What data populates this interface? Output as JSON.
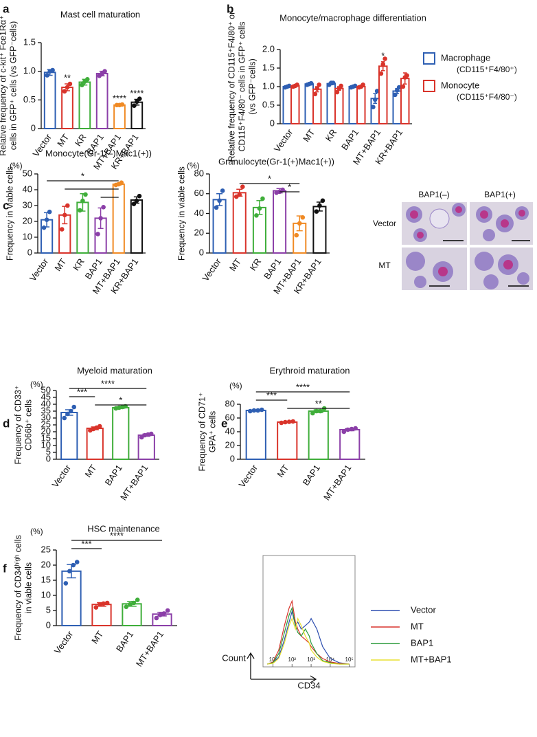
{
  "chart_data": [
    {
      "type": "bar",
      "panel": "a",
      "title": "Mast cell maturation",
      "ylabel": [
        "Relative frequency of c-kit⁺ Fce1Rα⁺",
        "cells in GFP⁺ cells  (vs GFP⁻cells)"
      ],
      "categories": [
        "Vector",
        "MT",
        "KR",
        "BAP1",
        "MT+BAP1",
        "KR+BAP1"
      ],
      "colors": [
        "#2e5fb3",
        "#d9342b",
        "#3fae3a",
        "#8b3fa8",
        "#f08a24",
        "#111111"
      ],
      "values": [
        0.98,
        0.72,
        0.81,
        0.96,
        0.41,
        0.46
      ],
      "errors": [
        0.05,
        0.06,
        0.05,
        0.04,
        0.01,
        0.05
      ],
      "points": [
        [
          0.93,
          1.0,
          1.02
        ],
        [
          0.65,
          0.72,
          0.78
        ],
        [
          0.76,
          0.82,
          0.86
        ],
        [
          0.92,
          0.96,
          1.0
        ],
        [
          0.41,
          0.41,
          0.42
        ],
        [
          0.4,
          0.47,
          0.52
        ]
      ],
      "stars": [
        null,
        "**",
        null,
        null,
        "****",
        "****"
      ],
      "ylim": [
        0,
        1.5
      ],
      "yticks": [
        0,
        0.5,
        {
          "value": 1,
          "label": "1.0"
        },
        1.5
      ]
    },
    {
      "type": "grouped-bar",
      "panel": "b",
      "title": "Monocyte/macrophage differentiation",
      "ylabel": [
        "Relative frequency of CD115⁺F4/80⁺ or",
        "CD115⁺F4/80⁻ cells in GFP⁺ cells",
        "(vs GFP⁻cells)"
      ],
      "categories": [
        "Vector",
        "MT",
        "KR",
        "BAP1",
        "MT+BAP1",
        "KR+BAP1"
      ],
      "series": [
        {
          "name": "Macrophage",
          "sublabel": "(CD115⁺F4/80⁺)",
          "color": "#2e5fb3",
          "values": [
            1.0,
            1.07,
            1.08,
            1.0,
            0.68,
            0.88
          ],
          "errors": [
            0.02,
            0.02,
            0.03,
            0.02,
            0.13,
            0.07
          ],
          "points": [
            [
              0.98,
              1.0,
              1.02
            ],
            [
              1.05,
              1.07,
              1.09
            ],
            [
              1.05,
              1.1,
              1.1
            ],
            [
              0.98,
              1.0,
              1.02
            ],
            [
              0.45,
              0.65,
              0.88
            ],
            [
              0.78,
              0.9,
              0.98
            ]
          ],
          "stars": [
            null,
            null,
            null,
            null,
            null,
            null
          ]
        },
        {
          "name": "Monocyte",
          "sublabel": "(CD115⁺F4/80⁻)",
          "color": "#d9342b",
          "values": [
            1.02,
            0.93,
            0.95,
            1.0,
            1.55,
            1.22
          ],
          "errors": [
            0.03,
            0.07,
            0.05,
            0.03,
            0.12,
            0.15
          ],
          "points": [
            [
              1.0,
              1.02,
              1.05
            ],
            [
              0.8,
              0.95,
              1.05
            ],
            [
              0.85,
              0.95,
              1.02
            ],
            [
              0.98,
              1.0,
              1.05
            ],
            [
              1.35,
              1.6,
              1.75
            ],
            [
              1.0,
              1.25,
              1.3
            ]
          ],
          "stars": [
            null,
            null,
            null,
            null,
            "*",
            null
          ]
        }
      ],
      "ylim": [
        0,
        2
      ],
      "yticks": [
        0,
        0.5,
        {
          "value": 1,
          "label": "1.0"
        },
        1.5,
        {
          "value": 2,
          "label": "2.0"
        }
      ]
    },
    {
      "type": "bar",
      "panel": "c",
      "title": "Monocyte(Gr-1(–)Mac1(+))",
      "unit": "(%)",
      "ylabel": [
        "Frequency in viable cells"
      ],
      "categories": [
        "Vector",
        "MT",
        "KR",
        "BAP1",
        "MT+BAP1",
        "KR+BAP1"
      ],
      "colors": [
        "#2e5fb3",
        "#d9342b",
        "#3fae3a",
        "#8b3fa8",
        "#f08a24",
        "#111111"
      ],
      "values": [
        21,
        24,
        32,
        22,
        43.5,
        33.5
      ],
      "errors": [
        4.5,
        5.5,
        5.5,
        6.5,
        0.6,
        2
      ],
      "points": [
        [
          16,
          21,
          26
        ],
        [
          15,
          24,
          30
        ],
        [
          27,
          33,
          37
        ],
        [
          12,
          22,
          29
        ],
        [
          43,
          43.5,
          44.5
        ],
        [
          31,
          33,
          36
        ]
      ],
      "brackets": [
        {
          "between": [
            "Vector",
            "MT+BAP1"
          ],
          "label": "*"
        },
        {
          "between": [
            "MT",
            "MT+BAP1"
          ]
        },
        {
          "between": [
            "BAP1",
            "MT+BAP1"
          ]
        }
      ],
      "ylim": [
        0,
        50
      ],
      "yticks": [
        0,
        10,
        20,
        30,
        40,
        50
      ]
    },
    {
      "type": "bar",
      "title": "Granulocyte(Gr-1(+)Mac1(+))",
      "unit": "(%)",
      "ylabel": [
        "Frequency in viable cells"
      ],
      "categories": [
        "Vector",
        "MT",
        "KR",
        "BAP1",
        "MT+BAP1",
        "KR+BAP1"
      ],
      "colors": [
        "#2e5fb3",
        "#d9342b",
        "#3fae3a",
        "#8b3fa8",
        "#f08a24",
        "#111111"
      ],
      "values": [
        54,
        61,
        46,
        63,
        30,
        47
      ],
      "errors": [
        6,
        3.5,
        7,
        2.2,
        7.5,
        4.5
      ],
      "points": [
        [
          46,
          53,
          63
        ],
        [
          57,
          59,
          67
        ],
        [
          38,
          45,
          55
        ],
        [
          61,
          62,
          64
        ],
        [
          18,
          30,
          36
        ],
        [
          42,
          48,
          53
        ]
      ],
      "brackets": [
        {
          "between": [
            "MT",
            "MT+BAP1"
          ],
          "label": "*"
        },
        {
          "between": [
            "BAP1",
            "MT+BAP1"
          ],
          "label": "*"
        }
      ],
      "ylim": [
        0,
        80
      ],
      "yticks": [
        0,
        20,
        40,
        60,
        80
      ]
    },
    {
      "type": "bar",
      "panel": "d",
      "title": "Myeloid maturation",
      "unit": "(%)",
      "ylabel": [
        "Frequency of CD33⁺",
        "CD66b⁺ cells"
      ],
      "categories": [
        "Vector",
        "MT",
        "BAP1",
        "MT+BAP1"
      ],
      "colors": [
        "#2e5fb3",
        "#d9342b",
        "#3fae3a",
        "#8b3fa8"
      ],
      "values": [
        34,
        22.5,
        37.5,
        17.5
      ],
      "errors": [
        2,
        1,
        0.5,
        0.8
      ],
      "points": [
        [
          30,
          33,
          35,
          38
        ],
        [
          21,
          22,
          23,
          24
        ],
        [
          37,
          37.5,
          38,
          38.5
        ],
        [
          16,
          17.5,
          18,
          18.5
        ]
      ],
      "brackets": [
        {
          "between": [
            "Vector",
            "MT+BAP1"
          ],
          "label": "****"
        },
        {
          "between": [
            "Vector",
            "MT"
          ],
          "label": "***"
        },
        {
          "between": [
            "MT",
            "MT+BAP1"
          ],
          "label": "*"
        }
      ],
      "ylim": [
        0,
        50
      ],
      "yticks": [
        0,
        5,
        10,
        15,
        20,
        25,
        30,
        35,
        40,
        45,
        50
      ]
    },
    {
      "type": "bar",
      "panel": "e",
      "title": "Erythroid maturation",
      "unit": "(%)",
      "ylabel": [
        "Frequency of CD71⁺",
        "GPA⁺ cells"
      ],
      "categories": [
        "Vector",
        "MT",
        "BAP1",
        "MT+BAP1"
      ],
      "colors": [
        "#2e5fb3",
        "#d9342b",
        "#3fae3a",
        "#8b3fa8"
      ],
      "values": [
        71,
        54,
        70,
        43
      ],
      "errors": [
        0.7,
        0.6,
        2,
        1.5
      ],
      "points": [
        [
          70,
          71,
          71,
          72
        ],
        [
          53,
          54,
          54.5,
          55
        ],
        [
          67,
          70,
          70,
          74
        ],
        [
          40,
          43,
          44,
          45
        ]
      ],
      "brackets": [
        {
          "between": [
            "Vector",
            "MT+BAP1"
          ],
          "label": "****"
        },
        {
          "between": [
            "Vector",
            "MT"
          ],
          "label": "***"
        },
        {
          "between": [
            "MT",
            "MT+BAP1"
          ],
          "label": "**"
        }
      ],
      "ylim": [
        0,
        80
      ],
      "yticks": [
        0,
        20,
        40,
        60,
        80
      ]
    },
    {
      "type": "bar",
      "panel": "f",
      "title": "HSC maintenance",
      "unit": "(%)",
      "ylabel": [
        "Frequency of CD34ʰⁱᵍʰ cells",
        "in viable cells"
      ],
      "categories": [
        "Vector",
        "MT",
        "BAP1",
        "MT+BAP1"
      ],
      "colors": [
        "#2e5fb3",
        "#d9342b",
        "#3fae3a",
        "#8b3fa8"
      ],
      "values": [
        18,
        7,
        7.2,
        3.8
      ],
      "errors": [
        2.2,
        0.6,
        0.8,
        0.6
      ],
      "points": [
        [
          14,
          18,
          20,
          21
        ],
        [
          6,
          7,
          7.3,
          7.5
        ],
        [
          6.2,
          7,
          7.5,
          8.5
        ],
        [
          2.5,
          3.5,
          4,
          5
        ]
      ],
      "brackets": [
        {
          "between": [
            "Vector",
            "MT+BAP1"
          ],
          "label": "****"
        },
        {
          "between": [
            "Vector",
            "MT"
          ],
          "label": "***"
        }
      ],
      "ylim": [
        0,
        25
      ],
      "yticks": [
        0,
        5,
        10,
        15,
        20,
        25
      ]
    },
    {
      "type": "line",
      "xscale": "log",
      "xlabel": "CD34",
      "ylabel": "Count",
      "x": [
        5,
        10,
        20,
        40,
        70,
        100,
        150,
        200,
        300,
        500,
        800,
        1000,
        2000,
        4000,
        10000,
        30000,
        100000
      ],
      "series": [
        {
          "name": "Vector",
          "color": "#2e4fb0",
          "values": [
            0,
            2,
            10,
            35,
            60,
            75,
            55,
            60,
            50,
            55,
            60,
            65,
            50,
            25,
            8,
            2,
            0
          ]
        },
        {
          "name": "MT",
          "color": "#d9342b",
          "values": [
            0,
            3,
            20,
            55,
            80,
            90,
            60,
            50,
            40,
            35,
            30,
            25,
            15,
            8,
            3,
            1,
            0
          ]
        },
        {
          "name": "BAP1",
          "color": "#2a9a3a",
          "values": [
            0,
            2,
            15,
            45,
            70,
            80,
            55,
            45,
            40,
            50,
            40,
            30,
            15,
            5,
            2,
            0,
            0
          ]
        },
        {
          "name": "MT+BAP1",
          "color": "#e8e030",
          "values": [
            0,
            1,
            8,
            30,
            55,
            65,
            50,
            65,
            55,
            40,
            30,
            20,
            10,
            4,
            1,
            0,
            0
          ]
        }
      ],
      "xlim": [
        3,
        200000
      ],
      "ylim": [
        0,
        100
      ],
      "xticks": [
        {
          "value": 10,
          "label": "10¹"
        },
        {
          "value": 100,
          "label": "10²"
        },
        {
          "value": 1000,
          "label": "10³"
        },
        {
          "value": 10000,
          "label": "10⁴"
        },
        {
          "value": 100000,
          "label": "10⁵"
        }
      ]
    }
  ],
  "micrograph": {
    "columns": [
      "BAP1(–)",
      "BAP1(+)"
    ],
    "rows": [
      "Vector",
      "MT"
    ]
  }
}
